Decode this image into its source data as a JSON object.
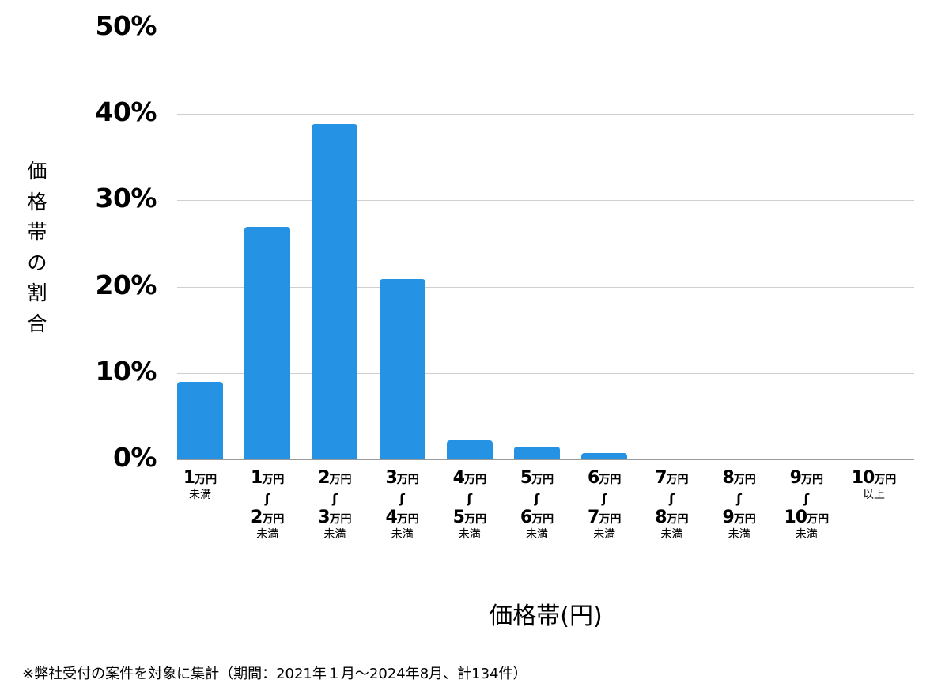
{
  "chart_data": {
    "type": "bar",
    "title": "",
    "xlabel": "価格帯(円)",
    "ylabel": "価格帯の割合",
    "ylim": [
      0,
      50
    ],
    "yticks": [
      "0%",
      "10%",
      "20%",
      "30%",
      "40%",
      "50%"
    ],
    "grid": true,
    "legend": null,
    "bar_color": "#2592e4",
    "categories": [
      "1万円未満",
      "1万円〜2万円未満",
      "2万円〜3万円未満",
      "3万円〜4万円未満",
      "4万円〜5万円未満",
      "5万円〜6万円未満",
      "6万円〜7万円未満",
      "7万円〜8万円未満",
      "8万円〜9万円未満",
      "9万円〜10万円未満",
      "10万円以上"
    ],
    "values": [
      9.0,
      26.9,
      38.8,
      20.9,
      2.2,
      1.5,
      0.7,
      0,
      0,
      0,
      0
    ],
    "unit": "%",
    "note": "※弊社受付の案件を対象に集計（期間：2021年１月〜2024年8月、計134件）"
  },
  "yaxis": {
    "title_chars": [
      "価",
      "格",
      "帯",
      "の",
      "割",
      "合"
    ],
    "ticks": [
      "50%",
      "40%",
      "30%",
      "20%",
      "10%",
      "0%"
    ]
  },
  "xaxis": {
    "title": "価格帯(円)",
    "tilde": "〜",
    "unit": "万円",
    "categories": [
      {
        "from": "1",
        "to": null,
        "suffix": "未満"
      },
      {
        "from": "1",
        "to": "2",
        "suffix": "未満"
      },
      {
        "from": "2",
        "to": "3",
        "suffix": "未満"
      },
      {
        "from": "3",
        "to": "4",
        "suffix": "未満"
      },
      {
        "from": "4",
        "to": "5",
        "suffix": "未満"
      },
      {
        "from": "5",
        "to": "6",
        "suffix": "未満"
      },
      {
        "from": "6",
        "to": "7",
        "suffix": "未満"
      },
      {
        "from": "7",
        "to": "8",
        "suffix": "未満"
      },
      {
        "from": "8",
        "to": "9",
        "suffix": "未満"
      },
      {
        "from": "9",
        "to": "10",
        "suffix": "未満"
      },
      {
        "from": "10",
        "to": null,
        "suffix": "以上"
      }
    ]
  },
  "footnote": "※弊社受付の案件を対象に集計（期間：2021年１月〜2024年8月、計134件）"
}
